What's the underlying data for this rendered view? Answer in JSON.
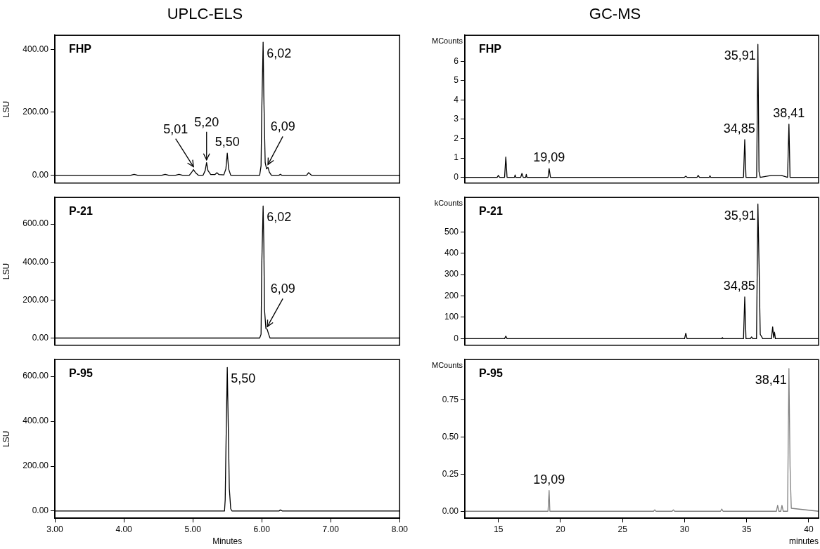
{
  "chart_data": [
    {
      "type": "line",
      "title": "UPLC-ELS",
      "ylabel": "LSU",
      "color": "#000000",
      "xlim": [
        3,
        8
      ],
      "ylim": [
        -25,
        445
      ],
      "tick_labels": "y",
      "yticks": [
        {
          "value": 0,
          "label": "0.00"
        },
        {
          "value": 200,
          "label": "200.00"
        },
        {
          "value": 400,
          "label": "400.00"
        }
      ],
      "x": [
        3.0,
        4.1,
        4.15,
        4.2,
        4.55,
        4.6,
        4.65,
        4.75,
        4.8,
        4.85,
        4.95,
        4.98,
        5.01,
        5.04,
        5.08,
        5.15,
        5.18,
        5.2,
        5.22,
        5.26,
        5.32,
        5.35,
        5.38,
        5.45,
        5.48,
        5.5,
        5.52,
        5.55,
        5.97,
        5.99,
        6.0,
        6.02,
        6.03,
        6.05,
        6.07,
        6.09,
        6.11,
        6.14,
        6.25,
        6.27,
        6.29,
        6.65,
        6.68,
        6.72,
        7.0,
        8.0
      ],
      "values": [
        0,
        0,
        3,
        0,
        0,
        3,
        0,
        0,
        3,
        0,
        0,
        8,
        18,
        8,
        0,
        0,
        15,
        40,
        15,
        2,
        2,
        8,
        2,
        1,
        20,
        70,
        20,
        0,
        0,
        30,
        200,
        423,
        250,
        40,
        20,
        25,
        10,
        0,
        0,
        3,
        0,
        0,
        8,
        0,
        0,
        0
      ],
      "annotations": [
        "FHP",
        {
          "text": "5,01",
          "x": 5.01,
          "y": 18
        },
        {
          "text": "5,20",
          "x": 5.2,
          "y": 40
        },
        {
          "text": "5,50",
          "x": 5.5,
          "y": 70
        },
        {
          "text": "6,02",
          "x": 6.02,
          "y": 423
        },
        {
          "text": "6,09",
          "x": 6.09,
          "y": 25
        }
      ]
    },
    {
      "type": "line",
      "ylabel": "LSU",
      "color": "#000000",
      "xlim": [
        3,
        8
      ],
      "ylim": [
        -38,
        740
      ],
      "tick_labels": "y",
      "yticks": [
        {
          "value": 0,
          "label": "0.00"
        },
        {
          "value": 200,
          "label": "200.00"
        },
        {
          "value": 400,
          "label": "400.00"
        },
        {
          "value": 600,
          "label": "600.00"
        }
      ],
      "x": [
        3.0,
        5.97,
        5.99,
        6.0,
        6.02,
        6.03,
        6.04,
        6.06,
        6.08,
        6.1,
        6.12,
        8.0
      ],
      "values": [
        0,
        0,
        20,
        380,
        695,
        500,
        150,
        50,
        45,
        20,
        0,
        0
      ],
      "annotations": [
        "P-21",
        {
          "text": "6,02",
          "x": 6.02,
          "y": 695
        },
        {
          "text": "6,09",
          "x": 6.08,
          "y": 45
        }
      ]
    },
    {
      "type": "line",
      "ylabel": "LSU",
      "xlabel": "Minutes",
      "color": "#000000",
      "xlim": [
        3,
        8
      ],
      "ylim": [
        -32,
        675
      ],
      "xticks": [
        {
          "value": 3,
          "label": "3.00"
        },
        {
          "value": 4,
          "label": "4.00"
        },
        {
          "value": 5,
          "label": "5.00"
        },
        {
          "value": 6,
          "label": "6.00"
        },
        {
          "value": 7,
          "label": "7.00"
        },
        {
          "value": 8,
          "label": "8.00"
        }
      ],
      "yticks": [
        {
          "value": 0,
          "label": "0.00"
        },
        {
          "value": 200,
          "label": "200.00"
        },
        {
          "value": 400,
          "label": "400.00"
        },
        {
          "value": 600,
          "label": "600.00"
        }
      ],
      "x": [
        3.0,
        5.46,
        5.47,
        5.48,
        5.5,
        5.51,
        5.52,
        5.53,
        5.55,
        5.57,
        6.25,
        6.27,
        6.3,
        8.0
      ],
      "values": [
        0,
        0,
        50,
        260,
        640,
        460,
        280,
        100,
        10,
        0,
        0,
        5,
        0,
        0
      ],
      "annotations": [
        "P-95",
        {
          "text": "5,50",
          "x": 5.5,
          "y": 640
        }
      ]
    },
    {
      "type": "line",
      "title": "GC-MS",
      "ylabel": "MCounts",
      "color": "#000000",
      "xlim": [
        12.3,
        40.8
      ],
      "ylim": [
        -0.3,
        7.35
      ],
      "tick_labels": "y",
      "yticks": [
        0,
        1,
        2,
        3,
        4,
        5,
        6
      ],
      "x": [
        12.3,
        14.9,
        15.0,
        15.1,
        15.5,
        15.6,
        15.7,
        16.3,
        16.35,
        16.4,
        16.8,
        16.9,
        17.0,
        17.2,
        17.25,
        17.3,
        19.0,
        19.09,
        19.2,
        30.0,
        30.1,
        30.2,
        31.0,
        31.1,
        31.2,
        32.0,
        32.05,
        32.1,
        34.75,
        34.85,
        34.95,
        35.81,
        35.91,
        36.0,
        36.1,
        37.0,
        37.8,
        38.3,
        38.41,
        38.5,
        40.8
      ],
      "values": [
        0,
        0,
        0.1,
        0,
        0,
        1.05,
        0,
        0,
        0.12,
        0,
        0,
        0.2,
        0,
        0,
        0.15,
        0,
        0,
        0.45,
        0,
        0,
        0.06,
        0,
        0,
        0.1,
        0,
        0,
        0.08,
        0,
        0,
        1.95,
        0,
        0,
        6.88,
        0.3,
        0,
        0.1,
        0.1,
        0,
        2.75,
        0,
        0
      ],
      "annotations": [
        "FHP",
        {
          "text": "19,09",
          "x": 19.09,
          "y": 0.45
        },
        {
          "text": "34,85",
          "x": 34.85,
          "y": 1.95
        },
        {
          "text": "35,91",
          "x": 35.91,
          "y": 6.88
        },
        {
          "text": "38,41",
          "x": 38.41,
          "y": 2.75
        }
      ]
    },
    {
      "type": "line",
      "ylabel": "kCounts",
      "color": "#000000",
      "xlim": [
        12.3,
        40.8
      ],
      "ylim": [
        -31,
        661
      ],
      "tick_labels": "y",
      "yticks": [
        0,
        100,
        200,
        300,
        400,
        500
      ],
      "x": [
        12.3,
        15.5,
        15.6,
        15.7,
        30.0,
        30.1,
        30.2,
        33.0,
        33.05,
        33.1,
        34.75,
        34.85,
        34.95,
        35.3,
        35.4,
        35.5,
        35.8,
        35.91,
        36.0,
        36.1,
        36.3,
        37.0,
        37.1,
        37.18,
        37.25,
        37.32,
        40.8
      ],
      "values": [
        0,
        0,
        12,
        0,
        0,
        25,
        0,
        0,
        5,
        0,
        0,
        195,
        0,
        0,
        8,
        0,
        0,
        630,
        350,
        20,
        0,
        0,
        55,
        5,
        30,
        0,
        0
      ],
      "annotations": [
        "P-21",
        {
          "text": "34,85",
          "x": 34.85,
          "y": 195
        },
        {
          "text": "35,91",
          "x": 35.91,
          "y": 630
        }
      ]
    },
    {
      "type": "line",
      "ylabel": "MCounts",
      "xlabel": "minutes",
      "color": "#808080",
      "xlim": [
        12.3,
        40.8
      ],
      "ylim": [
        -0.047,
        1.02
      ],
      "xticks": [
        15,
        20,
        25,
        30,
        35,
        40
      ],
      "yticks": [
        {
          "value": 0,
          "label": "0.00"
        },
        {
          "value": 0.25,
          "label": "0.25"
        },
        {
          "value": 0.5,
          "label": "0.50"
        },
        {
          "value": 0.75,
          "label": "0.75"
        }
      ],
      "x": [
        12.3,
        19.0,
        19.09,
        19.15,
        27.5,
        27.6,
        27.7,
        29.0,
        29.1,
        29.2,
        32.9,
        33.0,
        33.1,
        37.4,
        37.5,
        37.6,
        37.75,
        37.85,
        37.95,
        38.3,
        38.41,
        38.5,
        38.6,
        40.8
      ],
      "values": [
        0,
        0,
        0.14,
        0,
        0,
        0.01,
        0,
        0,
        0.01,
        0,
        0,
        0.015,
        0,
        0,
        0.04,
        0,
        0,
        0.04,
        0,
        0,
        0.96,
        0.3,
        0.02,
        0
      ],
      "annotations": [
        "P-95",
        {
          "text": "19,09",
          "x": 19.09,
          "y": 0.14
        },
        {
          "text": "38,41",
          "x": 38.41,
          "y": 0.96
        }
      ]
    }
  ]
}
